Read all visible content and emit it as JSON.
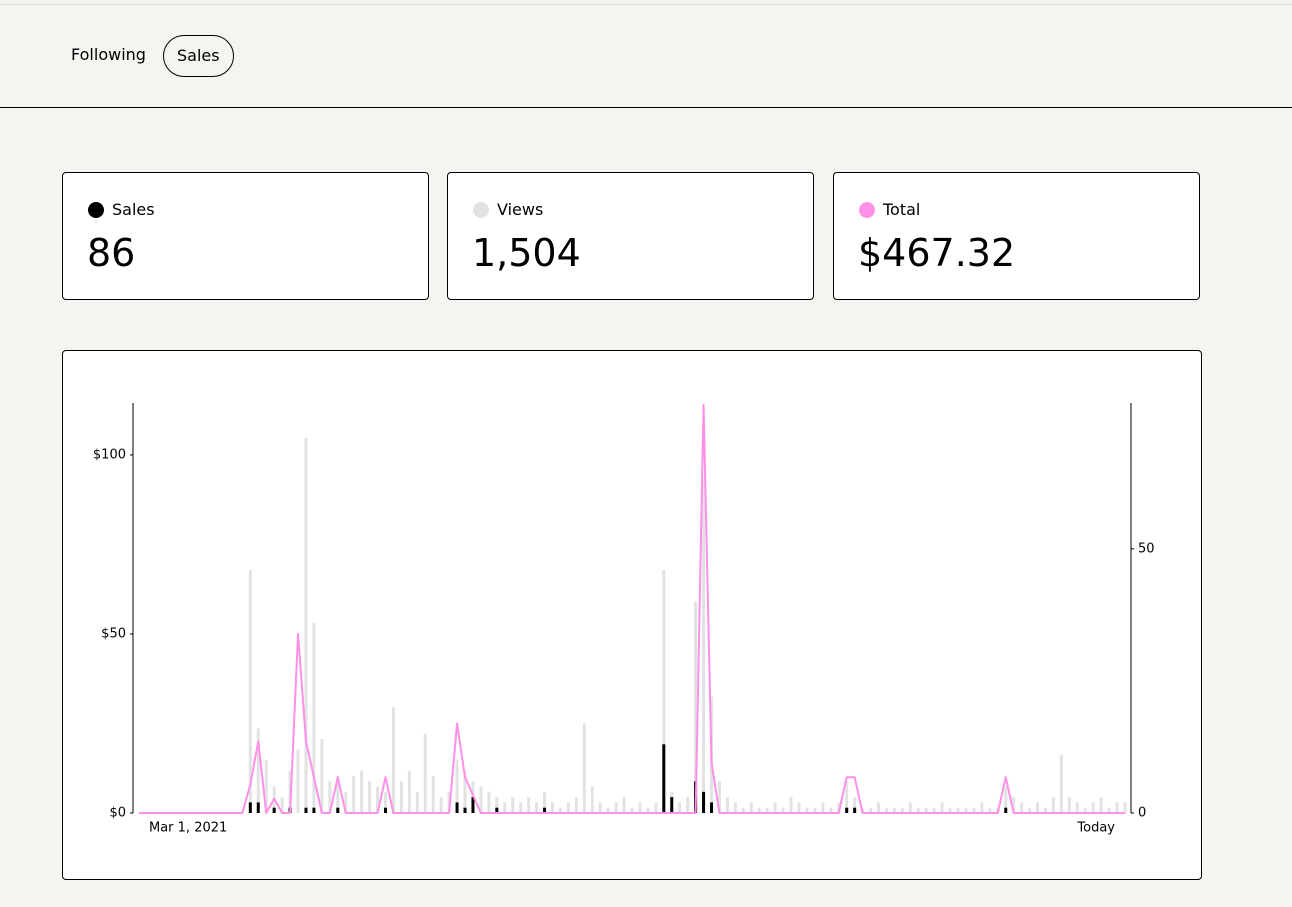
{
  "nav": {
    "tabs": [
      "Following",
      "Sales"
    ],
    "active": 1
  },
  "totals": [
    "86",
    "1,504",
    "$467.32"
  ],
  "chart_data": {
    "type": "combo",
    "categories": [
      "Mar 1, 2021",
      null,
      null,
      null,
      null,
      null,
      null,
      null,
      null,
      null,
      null,
      null,
      null,
      null,
      null,
      null,
      null,
      null,
      null,
      null,
      null,
      null,
      null,
      null,
      null,
      null,
      null,
      null,
      null,
      null,
      null,
      null,
      null,
      null,
      null,
      null,
      null,
      null,
      null,
      null,
      null,
      null,
      null,
      null,
      null,
      null,
      null,
      null,
      null,
      null,
      null,
      null,
      null,
      null,
      null,
      null,
      null,
      null,
      null,
      null,
      null,
      null,
      null,
      null,
      null,
      null,
      null,
      null,
      null,
      null,
      null,
      null,
      null,
      null,
      null,
      null,
      null,
      null,
      null,
      null,
      null,
      null,
      null,
      null,
      null,
      null,
      null,
      null,
      null,
      null,
      null,
      null,
      null,
      null,
      null,
      null,
      null,
      null,
      null,
      null,
      null,
      null,
      null,
      null,
      null,
      null,
      null,
      null,
      null,
      null,
      null,
      null,
      null,
      null,
      null,
      null,
      null,
      null,
      null,
      null,
      null,
      null,
      null,
      null,
      "Today"
    ],
    "series": [
      {
        "name": "Sales",
        "color": "#000000",
        "kind": "bar",
        "axis": "y2",
        "values": [
          0,
          0,
          0,
          0,
          0,
          0,
          0,
          0,
          0,
          0,
          0,
          0,
          0,
          0,
          2,
          2,
          0,
          1,
          0,
          1,
          0,
          1,
          1,
          0,
          0,
          1,
          0,
          0,
          0,
          0,
          0,
          1,
          0,
          0,
          0,
          0,
          0,
          0,
          0,
          0,
          2,
          1,
          3,
          0,
          0,
          1,
          0,
          0,
          0,
          0,
          0,
          1,
          0,
          0,
          0,
          0,
          0,
          0,
          0,
          0,
          0,
          0,
          0,
          0,
          0,
          0,
          13,
          3,
          0,
          0,
          6,
          4,
          2,
          0,
          0,
          0,
          0,
          0,
          0,
          0,
          0,
          0,
          0,
          0,
          0,
          0,
          0,
          0,
          0,
          1,
          1,
          0,
          0,
          0,
          0,
          0,
          0,
          0,
          0,
          0,
          0,
          0,
          0,
          0,
          0,
          0,
          0,
          0,
          0,
          1,
          0,
          0,
          0,
          0,
          0,
          0,
          0,
          0,
          0,
          0,
          0,
          0,
          0,
          0,
          0
        ]
      },
      {
        "name": "Views",
        "color": "#e2e2e2",
        "kind": "bar",
        "axis": "y2",
        "values": [
          0,
          0,
          0,
          0,
          0,
          0,
          0,
          0,
          0,
          0,
          0,
          0,
          0,
          0,
          46,
          16,
          10,
          5,
          3,
          8,
          12,
          71,
          36,
          14,
          6,
          7,
          4,
          7,
          8,
          6,
          5,
          4,
          20,
          6,
          8,
          4,
          15,
          7,
          3,
          4,
          10,
          8,
          6,
          5,
          4,
          3,
          2,
          3,
          2,
          3,
          2,
          4,
          2,
          1,
          2,
          3,
          17,
          5,
          2,
          1,
          2,
          3,
          1,
          2,
          1,
          2,
          46,
          4,
          2,
          3,
          40,
          63,
          22,
          6,
          3,
          2,
          1,
          2,
          1,
          1,
          2,
          1,
          3,
          2,
          1,
          1,
          2,
          1,
          2,
          6,
          3,
          1,
          1,
          2,
          1,
          1,
          1,
          2,
          1,
          1,
          1,
          2,
          1,
          1,
          1,
          1,
          2,
          1,
          1,
          5,
          3,
          2,
          1,
          2,
          1,
          3,
          11,
          3,
          2,
          1,
          2,
          3,
          1,
          2,
          2
        ]
      },
      {
        "name": "Total",
        "color": "#ff90e8",
        "kind": "line",
        "values": [
          0,
          0,
          0,
          0,
          0,
          0,
          0,
          0,
          0,
          0,
          0,
          0,
          0,
          0,
          8,
          20,
          0,
          4,
          0,
          0,
          50,
          20,
          10,
          0,
          0,
          10,
          0,
          0,
          0,
          0,
          0,
          10,
          0,
          0,
          0,
          0,
          0,
          0,
          0,
          0,
          25,
          10,
          5,
          0,
          0,
          0,
          0,
          0,
          0,
          0,
          0,
          0,
          0,
          0,
          0,
          0,
          0,
          0,
          0,
          0,
          0,
          0,
          0,
          0,
          0,
          0,
          0,
          0,
          0,
          0,
          0,
          114,
          14,
          0,
          0,
          0,
          0,
          0,
          0,
          0,
          0,
          0,
          0,
          0,
          0,
          0,
          0,
          0,
          0,
          10,
          10,
          0,
          0,
          0,
          0,
          0,
          0,
          0,
          0,
          0,
          0,
          0,
          0,
          0,
          0,
          0,
          0,
          0,
          0,
          10,
          0,
          0,
          0,
          0,
          0,
          0,
          0,
          0,
          0,
          0,
          0,
          0,
          0,
          0,
          0
        ]
      }
    ],
    "ylim": [
      0,
      114.5
    ],
    "yticks": [
      {
        "value": 0,
        "label": "$0"
      },
      {
        "value": 50,
        "label": "$50"
      },
      {
        "value": 100,
        "label": "$100"
      }
    ],
    "y2lim": [
      0,
      77.6
    ],
    "y2ticks": [
      0,
      50
    ]
  }
}
